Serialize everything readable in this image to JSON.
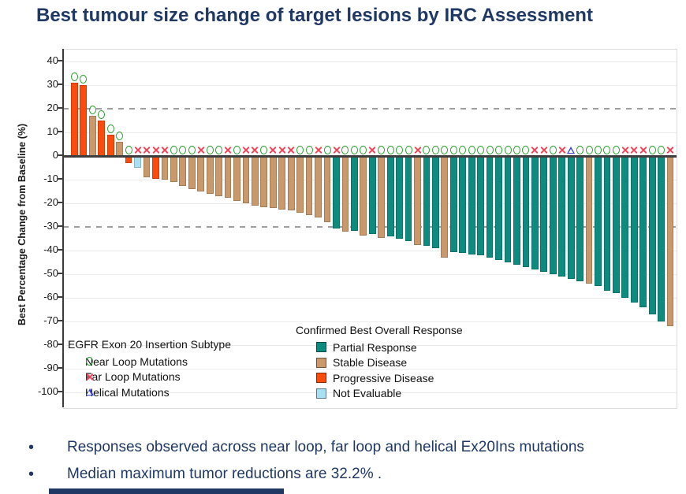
{
  "title": "Best tumour size change of target lesions by IRC Assessment",
  "chart_data": {
    "type": "bar",
    "variant": "waterfall",
    "title": "Best tumour size change of target lesions by IRC Assessment",
    "xlabel": "",
    "ylabel": "Best Percentage Change from Baseline (%)",
    "ylim": [
      -100,
      40
    ],
    "yticks": [
      40,
      30,
      20,
      10,
      0,
      -10,
      -20,
      -30,
      -40,
      -50,
      -60,
      -70,
      -80,
      -90,
      -100
    ],
    "grid": "horizontal-light",
    "reference_lines": [
      {
        "y": 20,
        "style": "dashed"
      },
      {
        "y": -30,
        "style": "dashed"
      },
      {
        "y": 0,
        "style": "solid"
      }
    ],
    "legend_position": "inside-bottom",
    "response_colors": {
      "PR": "#0E8B7F",
      "SD": "#C9996B",
      "PD": "#FB4B0D",
      "NE": "#A8DFF2"
    },
    "marker_colors": {
      "near": "#2FA133",
      "far": "#F0485A",
      "helical": "#3A45D6"
    },
    "bars": [
      {
        "v": 31,
        "r": "PD",
        "m": "near"
      },
      {
        "v": 30,
        "r": "PD",
        "m": "near"
      },
      {
        "v": 17,
        "r": "SD",
        "m": "near"
      },
      {
        "v": 15,
        "r": "PD",
        "m": "near"
      },
      {
        "v": 9,
        "r": "PD",
        "m": "near"
      },
      {
        "v": 6,
        "r": "SD",
        "m": "near"
      },
      {
        "v": -3,
        "r": "PD",
        "m": "near"
      },
      {
        "v": -5,
        "r": "NE",
        "m": "far"
      },
      {
        "v": -9,
        "r": "SD",
        "m": "far"
      },
      {
        "v": -9.5,
        "r": "PD",
        "m": "far"
      },
      {
        "v": -10,
        "r": "SD",
        "m": "far"
      },
      {
        "v": -11,
        "r": "SD",
        "m": "near"
      },
      {
        "v": -12.5,
        "r": "SD",
        "m": "near"
      },
      {
        "v": -14,
        "r": "SD",
        "m": "near"
      },
      {
        "v": -15,
        "r": "SD",
        "m": "far"
      },
      {
        "v": -16,
        "r": "SD",
        "m": "near"
      },
      {
        "v": -17,
        "r": "SD",
        "m": "near"
      },
      {
        "v": -17.5,
        "r": "SD",
        "m": "far"
      },
      {
        "v": -19,
        "r": "SD",
        "m": "near"
      },
      {
        "v": -20,
        "r": "SD",
        "m": "far"
      },
      {
        "v": -21,
        "r": "SD",
        "m": "far"
      },
      {
        "v": -21.5,
        "r": "SD",
        "m": "near"
      },
      {
        "v": -22,
        "r": "SD",
        "m": "far"
      },
      {
        "v": -22.5,
        "r": "SD",
        "m": "far"
      },
      {
        "v": -23,
        "r": "SD",
        "m": "far"
      },
      {
        "v": -24,
        "r": "SD",
        "m": "near"
      },
      {
        "v": -25,
        "r": "SD",
        "m": "near"
      },
      {
        "v": -26,
        "r": "SD",
        "m": "far"
      },
      {
        "v": -28,
        "r": "SD",
        "m": "near"
      },
      {
        "v": -30.5,
        "r": "PR",
        "m": "far"
      },
      {
        "v": -32,
        "r": "SD",
        "m": "near"
      },
      {
        "v": -31.5,
        "r": "PR",
        "m": "near"
      },
      {
        "v": -33.5,
        "r": "SD",
        "m": "near"
      },
      {
        "v": -33,
        "r": "PR",
        "m": "far"
      },
      {
        "v": -34.5,
        "r": "SD",
        "m": "near"
      },
      {
        "v": -34,
        "r": "PR",
        "m": "near"
      },
      {
        "v": -35,
        "r": "PR",
        "m": "near"
      },
      {
        "v": -36,
        "r": "PR",
        "m": "near"
      },
      {
        "v": -37.5,
        "r": "SD",
        "m": "far"
      },
      {
        "v": -38,
        "r": "PR",
        "m": "near"
      },
      {
        "v": -39,
        "r": "PR",
        "m": "near"
      },
      {
        "v": -43,
        "r": "SD",
        "m": "near"
      },
      {
        "v": -40.5,
        "r": "PR",
        "m": "near"
      },
      {
        "v": -41,
        "r": "PR",
        "m": "near"
      },
      {
        "v": -41.5,
        "r": "PR",
        "m": "near"
      },
      {
        "v": -42,
        "r": "PR",
        "m": "near"
      },
      {
        "v": -43,
        "r": "PR",
        "m": "near"
      },
      {
        "v": -44,
        "r": "PR",
        "m": "near"
      },
      {
        "v": -45,
        "r": "PR",
        "m": "near"
      },
      {
        "v": -46,
        "r": "PR",
        "m": "near"
      },
      {
        "v": -47,
        "r": "PR",
        "m": "near"
      },
      {
        "v": -48,
        "r": "PR",
        "m": "far"
      },
      {
        "v": -49,
        "r": "PR",
        "m": "far"
      },
      {
        "v": -50,
        "r": "PR",
        "m": "near"
      },
      {
        "v": -51,
        "r": "PR",
        "m": "far"
      },
      {
        "v": -52,
        "r": "PR",
        "m": "helical"
      },
      {
        "v": -53,
        "r": "PR",
        "m": "near"
      },
      {
        "v": -54,
        "r": "SD",
        "m": "near"
      },
      {
        "v": -55,
        "r": "PR",
        "m": "near"
      },
      {
        "v": -57,
        "r": "PR",
        "m": "near"
      },
      {
        "v": -58,
        "r": "PR",
        "m": "near"
      },
      {
        "v": -60,
        "r": "PR",
        "m": "far"
      },
      {
        "v": -62,
        "r": "PR",
        "m": "far"
      },
      {
        "v": -64,
        "r": "PR",
        "m": "far"
      },
      {
        "v": -67,
        "r": "PR",
        "m": "near"
      },
      {
        "v": -70,
        "r": "PR",
        "m": "near"
      },
      {
        "v": -72,
        "r": "SD",
        "m": "far"
      }
    ]
  },
  "subtype_legend": {
    "header": "EGFR Exon 20 Insertion Subtype",
    "items": [
      {
        "marker": "near",
        "label": "Near Loop Mutations"
      },
      {
        "marker": "far",
        "label": "Far Loop Mutations"
      },
      {
        "marker": "helical",
        "label": "Helical Mutations"
      }
    ]
  },
  "response_legend": {
    "header": "Confirmed Best Overall Response",
    "items": [
      {
        "code": "PR",
        "label": "Partial Response",
        "color": "#0E8B7F"
      },
      {
        "code": "SD",
        "label": "Stable Disease",
        "color": "#C9996B"
      },
      {
        "code": "PD",
        "label": "Progressive Disease",
        "color": "#FB4B0D"
      },
      {
        "code": "NE",
        "label": "Not Evaluable",
        "color": "#A8DFF2"
      }
    ]
  },
  "bullets": [
    "Responses observed across near loop, far loop and helical Ex20Ins mutations",
    "Median maximum tumor reductions are 32.2% ."
  ],
  "colors": {
    "title_navy": "#1F3864",
    "zero_line": "#3D3D3D",
    "gridline": "#ECECEC",
    "dashed_line": "#9E9E9E"
  }
}
